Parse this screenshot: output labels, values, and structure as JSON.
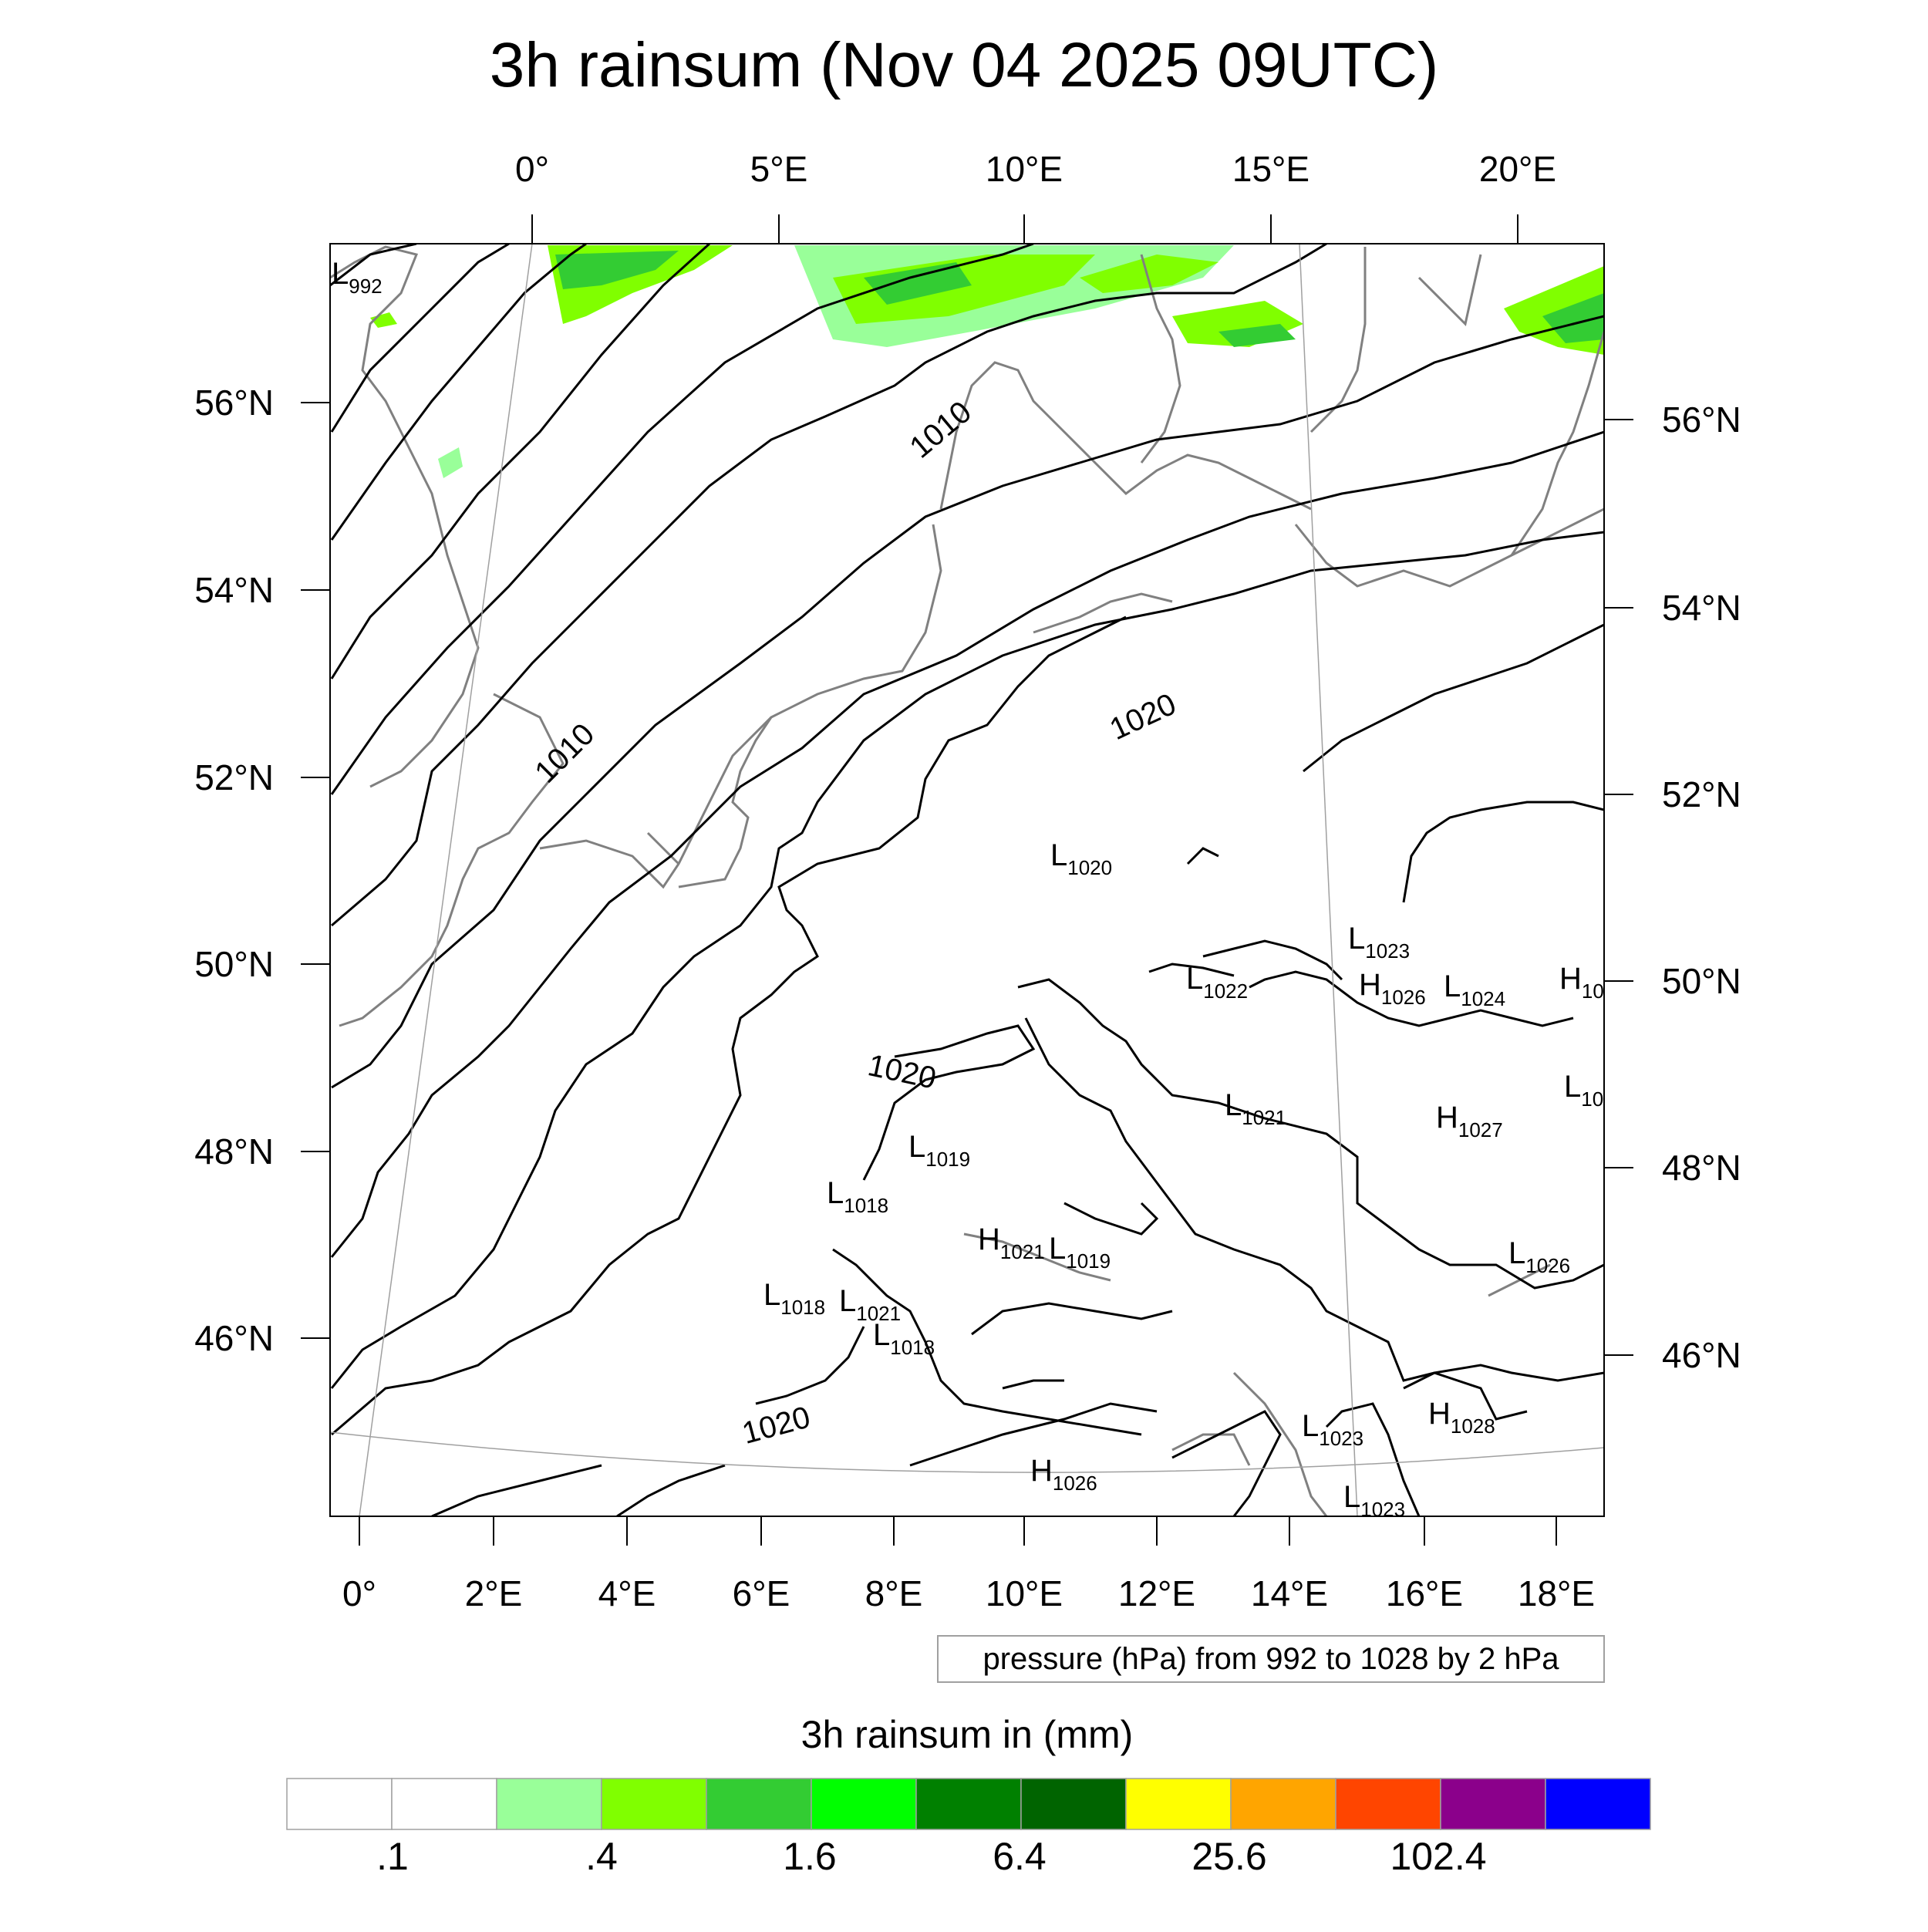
{
  "title": "3h rainsum (Nov 04 2025 09UTC)",
  "axes": {
    "top_lon_labels": [
      "0°",
      "5°E",
      "10°E",
      "15°E",
      "20°E"
    ],
    "bottom_lon_labels": [
      "0°",
      "2°E",
      "4°E",
      "6°E",
      "8°E",
      "10°E",
      "12°E",
      "14°E",
      "16°E",
      "18°E"
    ],
    "left_lat_labels": [
      "56°N",
      "54°N",
      "52°N",
      "50°N",
      "48°N",
      "46°N"
    ],
    "right_lat_labels": [
      "56°N",
      "54°N",
      "52°N",
      "50°N",
      "48°N",
      "46°N"
    ]
  },
  "contour_info": "pressure (hPa) from 992 to 1028 by 2 hPa",
  "contour_labels": [
    "1010",
    "1010",
    "1020",
    "1020",
    "1020"
  ],
  "pressure_centers": [
    {
      "type": "L",
      "value": "992"
    },
    {
      "type": "L",
      "value": "1020"
    },
    {
      "type": "L",
      "value": "1023"
    },
    {
      "type": "L",
      "value": "1022"
    },
    {
      "type": "H",
      "value": "1026"
    },
    {
      "type": "L",
      "value": "1024"
    },
    {
      "type": "H",
      "value": "10"
    },
    {
      "type": "L",
      "value": "10"
    },
    {
      "type": "L",
      "value": "1021"
    },
    {
      "type": "H",
      "value": "1027"
    },
    {
      "type": "L",
      "value": "1019"
    },
    {
      "type": "L",
      "value": "1018"
    },
    {
      "type": "H",
      "value": "1021"
    },
    {
      "type": "L",
      "value": "1019"
    },
    {
      "type": "L",
      "value": "1018"
    },
    {
      "type": "L",
      "value": "1021"
    },
    {
      "type": "L",
      "value": "1018"
    },
    {
      "type": "L",
      "value": "1026"
    },
    {
      "type": "L",
      "value": "1023"
    },
    {
      "type": "H",
      "value": "1028"
    },
    {
      "type": "H",
      "value": "1026"
    },
    {
      "type": "L",
      "value": "1023"
    }
  ],
  "colorbar": {
    "title": "3h rainsum in (mm)",
    "colors": [
      "#ffffff",
      "#ffffff",
      "#99ff99",
      "#80ff00",
      "#33cc33",
      "#00ff00",
      "#008000",
      "#006400",
      "#ffff00",
      "#ffa500",
      "#ff4500",
      "#8b008b",
      "#0000ff"
    ],
    "tick_labels": [
      ".1",
      ".4",
      "1.6",
      "6.4",
      "25.6",
      "102.4"
    ]
  },
  "rain_colors": {
    "light": "#99ff99",
    "medium": "#80ff00",
    "heavy": "#33cc33",
    "max": "#00cc00"
  }
}
